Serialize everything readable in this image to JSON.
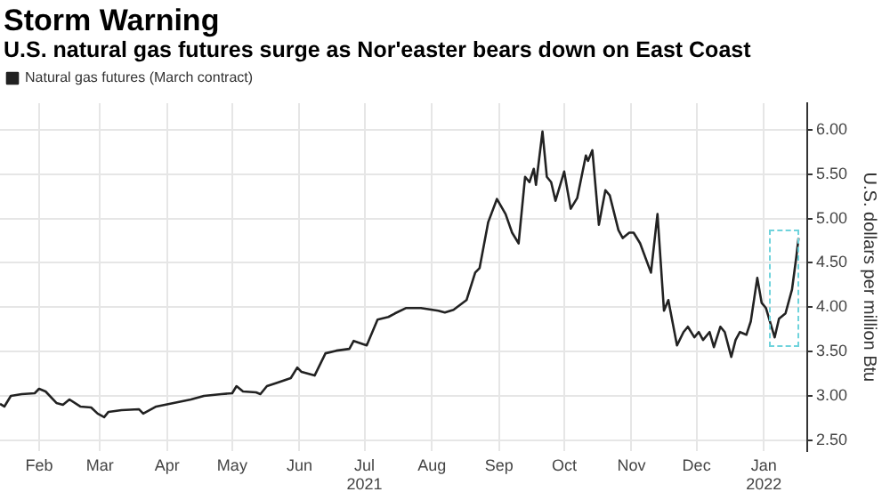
{
  "chart_data": {
    "type": "line",
    "title": "Storm Warning",
    "subtitle": "U.S. natural gas futures surge as Nor'easter bears down on East Coast",
    "ylabel": "U.S. dollars per million Btu",
    "x": [
      "2021-01-28",
      "2021-01-30",
      "2021-02-02",
      "2021-02-07",
      "2021-02-13",
      "2021-02-15",
      "2021-02-18",
      "2021-02-23",
      "2021-02-26",
      "2021-03-01",
      "2021-03-06",
      "2021-03-11",
      "2021-03-14",
      "2021-03-17",
      "2021-03-19",
      "2021-03-25",
      "2021-04-02",
      "2021-04-04",
      "2021-04-10",
      "2021-04-18",
      "2021-04-26",
      "2021-05-02",
      "2021-05-10",
      "2021-05-15",
      "2021-05-17",
      "2021-05-20",
      "2021-05-26",
      "2021-05-28",
      "2021-05-31",
      "2021-06-05",
      "2021-06-11",
      "2021-06-14",
      "2021-06-16",
      "2021-06-22",
      "2021-06-27",
      "2021-07-02",
      "2021-07-08",
      "2021-07-10",
      "2021-07-16",
      "2021-07-21",
      "2021-07-26",
      "2021-07-29",
      "2021-08-03",
      "2021-08-10",
      "2021-08-18",
      "2021-08-21",
      "2021-08-25",
      "2021-08-31",
      "2021-09-04",
      "2021-09-06",
      "2021-09-10",
      "2021-09-14",
      "2021-09-18",
      "2021-09-21",
      "2021-09-24",
      "2021-09-27",
      "2021-09-29",
      "2021-10-01",
      "2021-10-02",
      "2021-10-05",
      "2021-10-07",
      "2021-10-09",
      "2021-10-11",
      "2021-10-15",
      "2021-10-18",
      "2021-10-21",
      "2021-10-25",
      "2021-10-26",
      "2021-10-28",
      "2021-10-31",
      "2021-11-03",
      "2021-11-05",
      "2021-11-09",
      "2021-11-11",
      "2021-11-14",
      "2021-11-16",
      "2021-11-19",
      "2021-11-24",
      "2021-11-27",
      "2021-11-30",
      "2021-12-02",
      "2021-12-06",
      "2021-12-09",
      "2021-12-11",
      "2021-12-14",
      "2021-12-16",
      "2021-12-18",
      "2021-12-21",
      "2021-12-23",
      "2021-12-26",
      "2021-12-28",
      "2021-12-31",
      "2022-01-02",
      "2022-01-04",
      "2022-01-07",
      "2022-01-09",
      "2022-01-12",
      "2022-01-14",
      "2022-01-16",
      "2022-01-20",
      "2022-01-22",
      "2022-01-25",
      "2022-01-28",
      "2022-01-30",
      "2022-01-31"
    ],
    "series": [
      {
        "name": "Natural gas futures (March contract)",
        "color": "#222222",
        "values": [
          2.91,
          2.88,
          3.0,
          3.02,
          3.03,
          3.08,
          3.05,
          2.92,
          2.9,
          2.96,
          2.88,
          2.87,
          2.8,
          2.76,
          2.82,
          2.84,
          2.85,
          2.8,
          2.88,
          2.92,
          2.96,
          3.0,
          3.02,
          3.03,
          3.11,
          3.05,
          3.04,
          3.02,
          3.11,
          3.15,
          3.2,
          3.32,
          3.27,
          3.23,
          3.48,
          3.51,
          3.53,
          3.62,
          3.57,
          3.86,
          3.89,
          3.93,
          3.99,
          3.99,
          3.96,
          3.94,
          3.97,
          4.08,
          4.39,
          4.44,
          4.96,
          5.22,
          5.05,
          4.84,
          4.72,
          5.47,
          5.41,
          5.56,
          5.38,
          5.98,
          5.47,
          5.41,
          5.2,
          5.53,
          5.11,
          5.23,
          5.71,
          5.65,
          5.77,
          4.93,
          5.32,
          5.26,
          4.87,
          4.78,
          4.84,
          4.84,
          4.72,
          4.39,
          5.05,
          3.96,
          4.08,
          3.57,
          3.72,
          3.78,
          3.66,
          3.72,
          3.63,
          3.72,
          3.55,
          3.78,
          3.72,
          3.44,
          3.63,
          3.72,
          3.69,
          3.84,
          4.33,
          4.05,
          3.99,
          3.66,
          3.87,
          3.93,
          4.2,
          4.57,
          4.78
        ]
      }
    ],
    "xlim": [
      "2021-01-28",
      "2022-02-04"
    ],
    "xticks": [
      {
        "value": "2021-02-15",
        "label": "Feb"
      },
      {
        "value": "2021-03-15",
        "label": "Mar"
      },
      {
        "value": "2021-04-15",
        "label": "Apr"
      },
      {
        "value": "2021-05-15",
        "label": "May"
      },
      {
        "value": "2021-06-15",
        "label": "Jun"
      },
      {
        "value": "2021-07-15",
        "label": "Jul\n2021"
      },
      {
        "value": "2021-08-15",
        "label": "Aug"
      },
      {
        "value": "2021-09-15",
        "label": "Sep"
      },
      {
        "value": "2021-10-15",
        "label": "Oct"
      },
      {
        "value": "2021-11-15",
        "label": "Nov"
      },
      {
        "value": "2021-12-15",
        "label": "Dec"
      },
      {
        "value": "2022-01-15",
        "label": "Jan\n2022"
      }
    ],
    "ylim": [
      2.38,
      6.3
    ],
    "yticks": [
      {
        "value": 2.5,
        "label": "2.50"
      },
      {
        "value": 3,
        "label": "3.00"
      },
      {
        "value": 3.5,
        "label": "3.50"
      },
      {
        "value": 4,
        "label": "4.00"
      },
      {
        "value": 4.5,
        "label": "4.50"
      },
      {
        "value": 5,
        "label": "5.00"
      },
      {
        "value": 5.5,
        "label": "5.50"
      },
      {
        "value": 6,
        "label": "6.00"
      }
    ],
    "grid": true,
    "legend": "top left",
    "marker": "none",
    "line_style": "solid"
  }
}
